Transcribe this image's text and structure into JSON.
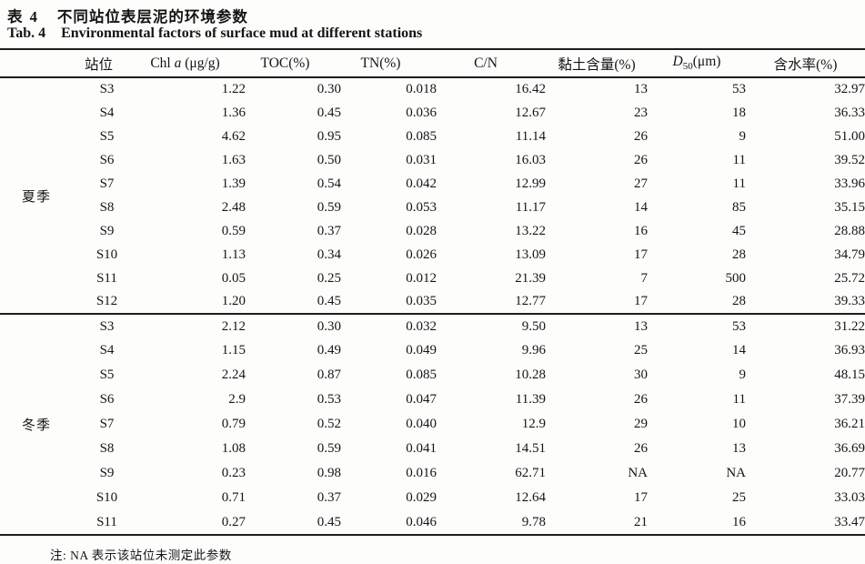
{
  "caption": {
    "zh_label": "表 4",
    "zh_title": "不同站位表层泥的环境参数",
    "en_label": "Tab. 4",
    "en_title": "Environmental factors of surface mud at different stations"
  },
  "table": {
    "headers": {
      "station": "站位",
      "chl_prefix": "Chl ",
      "chl_italic": "a",
      "chl_suffix": " (μg/g)",
      "toc": "TOC(%)",
      "tn": "TN(%)",
      "cn": "C/N",
      "clay": "黏土含量(%)",
      "d50_italic": "D",
      "d50_sub": "50",
      "d50_suffix": "(μm)",
      "water": "含水率(%)"
    },
    "groups": [
      {
        "season": "夏季",
        "rows": [
          [
            "S3",
            "1.22",
            "0.30",
            "0.018",
            "16.42",
            "13",
            "53",
            "32.97"
          ],
          [
            "S4",
            "1.36",
            "0.45",
            "0.036",
            "12.67",
            "23",
            "18",
            "36.33"
          ],
          [
            "S5",
            "4.62",
            "0.95",
            "0.085",
            "11.14",
            "26",
            "9",
            "51.00"
          ],
          [
            "S6",
            "1.63",
            "0.50",
            "0.031",
            "16.03",
            "26",
            "11",
            "39.52"
          ],
          [
            "S7",
            "1.39",
            "0.54",
            "0.042",
            "12.99",
            "27",
            "11",
            "33.96"
          ],
          [
            "S8",
            "2.48",
            "0.59",
            "0.053",
            "11.17",
            "14",
            "85",
            "35.15"
          ],
          [
            "S9",
            "0.59",
            "0.37",
            "0.028",
            "13.22",
            "16",
            "45",
            "28.88"
          ],
          [
            "S10",
            "1.13",
            "0.34",
            "0.026",
            "13.09",
            "17",
            "28",
            "34.79"
          ],
          [
            "S11",
            "0.05",
            "0.25",
            "0.012",
            "21.39",
            "7",
            "500",
            "25.72"
          ],
          [
            "S12",
            "1.20",
            "0.45",
            "0.035",
            "12.77",
            "17",
            "28",
            "39.33"
          ]
        ]
      },
      {
        "season": "冬季",
        "rows": [
          [
            "S3",
            "2.12",
            "0.30",
            "0.032",
            "9.50",
            "13",
            "53",
            "31.22"
          ],
          [
            "S4",
            "1.15",
            "0.49",
            "0.049",
            "9.96",
            "25",
            "14",
            "36.93"
          ],
          [
            "S5",
            "2.24",
            "0.87",
            "0.085",
            "10.28",
            "30",
            "9",
            "48.15"
          ],
          [
            "S6",
            "2.9",
            "0.53",
            "0.047",
            "11.39",
            "26",
            "11",
            "37.39"
          ],
          [
            "S7",
            "0.79",
            "0.52",
            "0.040",
            "12.9",
            "29",
            "10",
            "36.21"
          ],
          [
            "S8",
            "1.08",
            "0.59",
            "0.041",
            "14.51",
            "26",
            "13",
            "36.69"
          ],
          [
            "S9",
            "0.23",
            "0.98",
            "0.016",
            "62.71",
            "NA",
            "NA",
            "20.77"
          ],
          [
            "S10",
            "0.71",
            "0.37",
            "0.029",
            "12.64",
            "17",
            "25",
            "33.03"
          ],
          [
            "S11",
            "0.27",
            "0.45",
            "0.046",
            "9.78",
            "21",
            "16",
            "33.47"
          ]
        ]
      }
    ]
  },
  "footnote": "注: NA 表示该站位未测定此参数"
}
